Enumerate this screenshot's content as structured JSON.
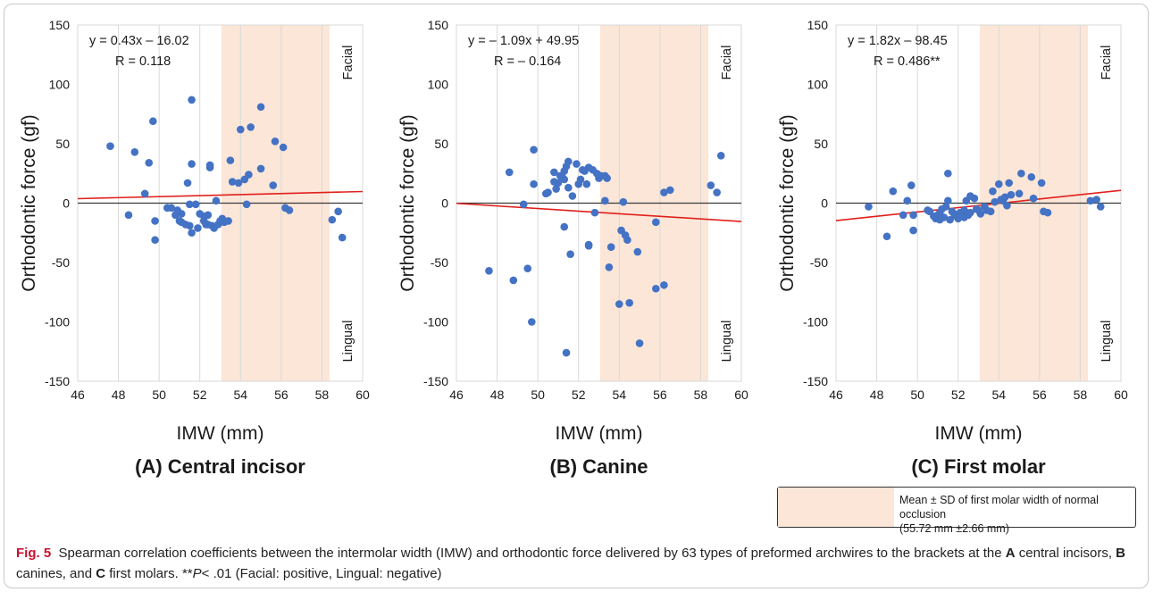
{
  "chart_data": [
    {
      "type": "scatter",
      "panel_title": "(A) Central incisor",
      "xlabel": "IMW (mm)",
      "ylabel": "Orthodontic force (gf)",
      "xlim": [
        46,
        60
      ],
      "ylim": [
        -150,
        150
      ],
      "xticks": [
        46,
        48,
        50,
        52,
        54,
        56,
        58,
        60
      ],
      "yticks": [
        150,
        100,
        50,
        0,
        -50,
        -100,
        -150
      ],
      "equation": "y = 0.43x – 16.02",
      "r_label": "R = 0.118",
      "regression": {
        "slope": 0.43,
        "intercept": -16.02
      },
      "shaded_x": [
        53.06,
        58.38
      ],
      "top_label": "Facial",
      "bottom_label": "Lingual",
      "points": [
        [
          47.6,
          48
        ],
        [
          48.5,
          -10
        ],
        [
          48.8,
          43
        ],
        [
          49.3,
          8
        ],
        [
          49.5,
          34
        ],
        [
          49.7,
          69
        ],
        [
          49.8,
          -15
        ],
        [
          49.8,
          -31
        ],
        [
          50.4,
          -4
        ],
        [
          50.6,
          -4
        ],
        [
          50.8,
          -10
        ],
        [
          50.9,
          -6
        ],
        [
          51.0,
          -15
        ],
        [
          51.1,
          -16
        ],
        [
          51.1,
          -9
        ],
        [
          51.3,
          -18
        ],
        [
          51.4,
          17
        ],
        [
          51.5,
          -1
        ],
        [
          51.5,
          -19
        ],
        [
          51.6,
          -25
        ],
        [
          51.6,
          33
        ],
        [
          51.6,
          87
        ],
        [
          51.8,
          -1
        ],
        [
          51.9,
          -21
        ],
        [
          52.0,
          -9
        ],
        [
          52.2,
          -15
        ],
        [
          52.2,
          -11
        ],
        [
          52.3,
          -18
        ],
        [
          52.4,
          -10
        ],
        [
          52.4,
          -18
        ],
        [
          52.5,
          30
        ],
        [
          52.5,
          32
        ],
        [
          52.6,
          -19
        ],
        [
          52.7,
          -21
        ],
        [
          52.8,
          2
        ],
        [
          52.9,
          -18
        ],
        [
          53.0,
          -15
        ],
        [
          53.1,
          -13
        ],
        [
          53.2,
          -16
        ],
        [
          53.4,
          -15
        ],
        [
          53.5,
          36
        ],
        [
          53.6,
          18
        ],
        [
          53.9,
          17
        ],
        [
          54.0,
          62
        ],
        [
          54.2,
          20
        ],
        [
          54.4,
          24
        ],
        [
          54.3,
          -1
        ],
        [
          54.5,
          64
        ],
        [
          55.0,
          29
        ],
        [
          55.0,
          81
        ],
        [
          55.6,
          15
        ],
        [
          55.7,
          52
        ],
        [
          56.1,
          47
        ],
        [
          56.2,
          -4
        ],
        [
          56.4,
          -6
        ],
        [
          58.5,
          -14
        ],
        [
          58.8,
          -7
        ],
        [
          59.0,
          -29
        ]
      ]
    },
    {
      "type": "scatter",
      "panel_title": "(B) Canine",
      "xlabel": "IMW (mm)",
      "ylabel": "Orthodontic force (gf)",
      "xlim": [
        46,
        60
      ],
      "ylim": [
        -150,
        150
      ],
      "xticks": [
        46,
        48,
        50,
        52,
        54,
        56,
        58,
        60
      ],
      "yticks": [
        150,
        100,
        50,
        0,
        -50,
        -100,
        -150
      ],
      "equation": "y = – 1.09x + 49.95",
      "r_label": "R = – 0.164",
      "regression": {
        "slope": -1.09,
        "intercept": 49.95
      },
      "shaded_x": [
        53.06,
        58.38
      ],
      "top_label": "Facial",
      "bottom_label": "Lingual",
      "points": [
        [
          47.6,
          -57
        ],
        [
          48.6,
          26
        ],
        [
          48.8,
          -65
        ],
        [
          49.3,
          -1
        ],
        [
          49.5,
          -55
        ],
        [
          49.7,
          -100
        ],
        [
          49.8,
          16
        ],
        [
          49.8,
          45
        ],
        [
          50.4,
          8
        ],
        [
          50.5,
          9
        ],
        [
          50.8,
          18
        ],
        [
          50.8,
          26
        ],
        [
          50.9,
          12
        ],
        [
          51.0,
          17
        ],
        [
          51.1,
          23
        ],
        [
          51.2,
          22
        ],
        [
          51.3,
          27
        ],
        [
          51.3,
          20
        ],
        [
          51.3,
          -20
        ],
        [
          51.4,
          31
        ],
        [
          51.5,
          35
        ],
        [
          51.4,
          -126
        ],
        [
          51.5,
          13
        ],
        [
          51.6,
          -43
        ],
        [
          51.7,
          6
        ],
        [
          51.9,
          33
        ],
        [
          52.0,
          16
        ],
        [
          52.1,
          20
        ],
        [
          52.2,
          28
        ],
        [
          52.3,
          27
        ],
        [
          52.4,
          16
        ],
        [
          52.5,
          30
        ],
        [
          52.5,
          -36
        ],
        [
          52.5,
          -35
        ],
        [
          52.7,
          28
        ],
        [
          52.8,
          -8
        ],
        [
          52.9,
          25
        ],
        [
          53.0,
          21
        ],
        [
          53.1,
          23
        ],
        [
          53.3,
          23
        ],
        [
          53.4,
          21
        ],
        [
          53.3,
          2
        ],
        [
          53.5,
          -54
        ],
        [
          53.6,
          -37
        ],
        [
          54.0,
          -85
        ],
        [
          54.1,
          -23
        ],
        [
          54.2,
          1
        ],
        [
          54.3,
          -27
        ],
        [
          54.4,
          -31
        ],
        [
          54.5,
          -84
        ],
        [
          54.9,
          -41
        ],
        [
          55.0,
          -118
        ],
        [
          55.8,
          -16
        ],
        [
          55.8,
          -72
        ],
        [
          56.2,
          -69
        ],
        [
          56.2,
          9
        ],
        [
          56.5,
          11
        ],
        [
          58.5,
          15
        ],
        [
          58.8,
          9
        ],
        [
          59.0,
          40
        ]
      ]
    },
    {
      "type": "scatter",
      "panel_title": "(C) First molar",
      "xlabel": "IMW (mm)",
      "ylabel": "Orthodontic force (gf)",
      "xlim": [
        46,
        60
      ],
      "ylim": [
        -150,
        150
      ],
      "xticks": [
        46,
        48,
        50,
        52,
        54,
        56,
        58,
        60
      ],
      "yticks": [
        150,
        100,
        50,
        0,
        -50,
        -100,
        -150
      ],
      "equation": "y = 1.82x – 98.45",
      "r_label": "R = 0.486**",
      "regression": {
        "slope": 1.82,
        "intercept": -98.45
      },
      "shaded_x": [
        53.06,
        58.38
      ],
      "top_label": "Facial",
      "bottom_label": "Lingual",
      "points": [
        [
          47.6,
          -3
        ],
        [
          48.5,
          -28
        ],
        [
          48.8,
          10
        ],
        [
          49.3,
          -10
        ],
        [
          49.5,
          2
        ],
        [
          49.7,
          15
        ],
        [
          49.8,
          -10
        ],
        [
          49.8,
          -23
        ],
        [
          50.5,
          -6
        ],
        [
          50.6,
          -7
        ],
        [
          50.8,
          -11
        ],
        [
          50.9,
          -13
        ],
        [
          51.0,
          -10
        ],
        [
          51.1,
          -8
        ],
        [
          51.1,
          -14
        ],
        [
          51.2,
          -5
        ],
        [
          51.3,
          -12
        ],
        [
          51.4,
          -3
        ],
        [
          51.5,
          2
        ],
        [
          51.5,
          25
        ],
        [
          51.6,
          -14
        ],
        [
          51.7,
          -7
        ],
        [
          51.8,
          -9
        ],
        [
          51.9,
          -11
        ],
        [
          52.0,
          -13
        ],
        [
          52.1,
          -8
        ],
        [
          52.2,
          -11
        ],
        [
          52.3,
          -12
        ],
        [
          52.3,
          -6
        ],
        [
          52.4,
          2
        ],
        [
          52.5,
          -10
        ],
        [
          52.6,
          6
        ],
        [
          52.6,
          -8
        ],
        [
          52.8,
          4
        ],
        [
          52.9,
          -5
        ],
        [
          53.0,
          -6
        ],
        [
          53.1,
          -9
        ],
        [
          53.3,
          -3
        ],
        [
          53.4,
          -6
        ],
        [
          53.6,
          -7
        ],
        [
          53.7,
          10
        ],
        [
          53.8,
          1
        ],
        [
          54.0,
          16
        ],
        [
          54.1,
          3
        ],
        [
          54.2,
          2
        ],
        [
          54.3,
          5
        ],
        [
          54.4,
          -2
        ],
        [
          54.5,
          17
        ],
        [
          54.6,
          7
        ],
        [
          55.0,
          8
        ],
        [
          55.1,
          25
        ],
        [
          55.6,
          22
        ],
        [
          55.7,
          4
        ],
        [
          56.1,
          17
        ],
        [
          56.2,
          -7
        ],
        [
          56.4,
          -8
        ],
        [
          58.5,
          2
        ],
        [
          58.8,
          3
        ],
        [
          59.0,
          -3
        ]
      ]
    }
  ],
  "legend": {
    "line1": "Mean ± SD of first molar width of normal occlusion",
    "line2": "(55.72 mm ±2.66 mm)"
  },
  "caption": {
    "fig_label": "Fig. 5",
    "part1": "Spearman correlation coefficients between the intermolar width (IMW) and orthodontic force delivered by 63 types of preformed archwires to the brackets at the",
    "A": "A",
    "part2": "central incisors,",
    "B": "B",
    "part3": "canines, and",
    "C": "C",
    "part4": "first molars. **",
    "P": "P",
    "part5": "< .01 (Facial: positive, Lingual: negative)"
  },
  "colors": {
    "points": "#4472c4",
    "regression": "#e0201c",
    "shade": "#fbe6d8",
    "grid": "#d9d9d9",
    "fig_label": "#c8102e"
  }
}
